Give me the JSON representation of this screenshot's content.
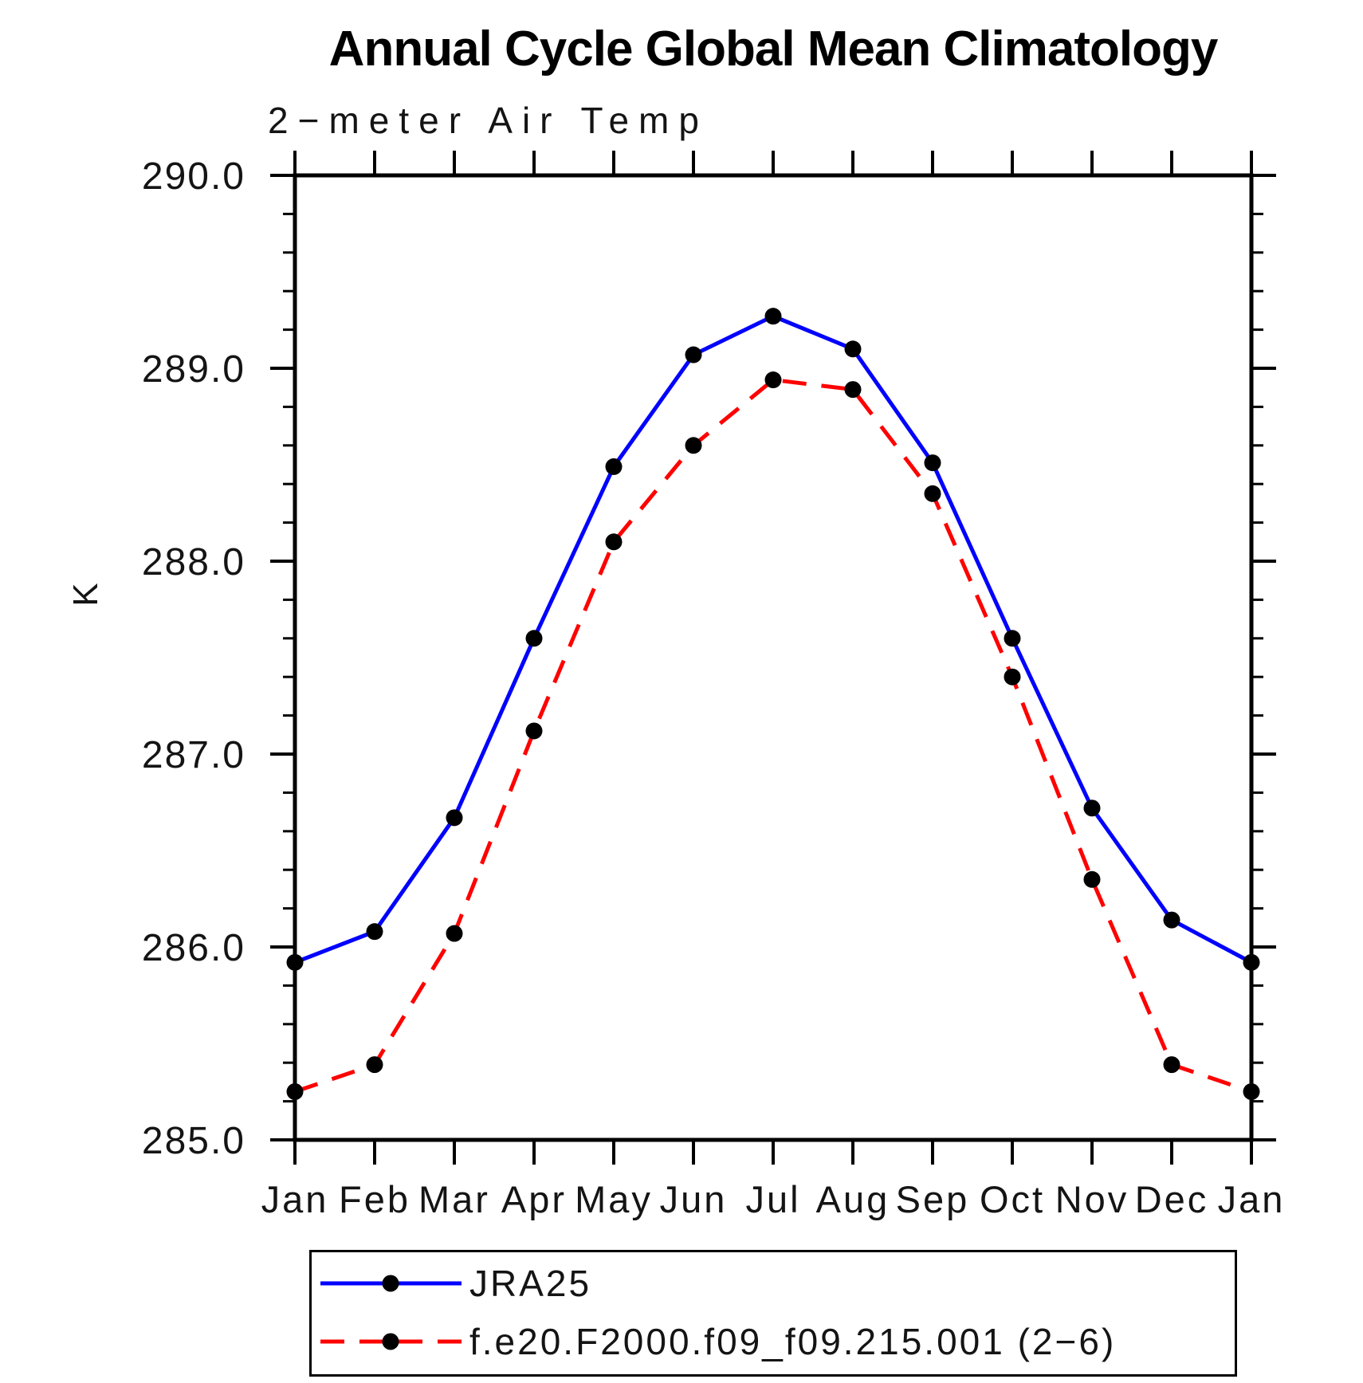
{
  "chart_data": {
    "type": "line",
    "title": "Annual Cycle Global Mean Climatology",
    "subtitle": "2−meter Air Temp",
    "ylabel": "K",
    "xlabel": "",
    "categories": [
      "Jan",
      "Feb",
      "Mar",
      "Apr",
      "May",
      "Jun",
      "Jul",
      "Aug",
      "Sep",
      "Oct",
      "Nov",
      "Dec",
      "Jan"
    ],
    "ylim": [
      285.0,
      290.0
    ],
    "y_major_step": 1.0,
    "y_minor_step": 0.2,
    "y_tick_labels": [
      "285.0",
      "286.0",
      "287.0",
      "288.0",
      "289.0",
      "290.0"
    ],
    "grid": false,
    "legend_position": "bottom-left-box",
    "axis_color": "#000000",
    "marker": "filled-circle",
    "marker_color": "#000000",
    "series": [
      {
        "name": "JRA25",
        "color": "#0000ff",
        "style": "solid",
        "marker_color": "#000000",
        "values": [
          285.92,
          286.08,
          286.67,
          287.6,
          288.49,
          289.07,
          289.27,
          289.1,
          288.51,
          287.6,
          286.72,
          286.14,
          285.92
        ]
      },
      {
        "name": "f.e20.F2000.f09_f09.215.001 (2−6)",
        "color": "#ff0000",
        "style": "dashed",
        "marker_color": "#000000",
        "values": [
          285.25,
          285.39,
          286.07,
          287.12,
          288.1,
          288.6,
          288.94,
          288.89,
          288.35,
          287.4,
          286.35,
          285.39,
          285.25
        ]
      }
    ]
  }
}
